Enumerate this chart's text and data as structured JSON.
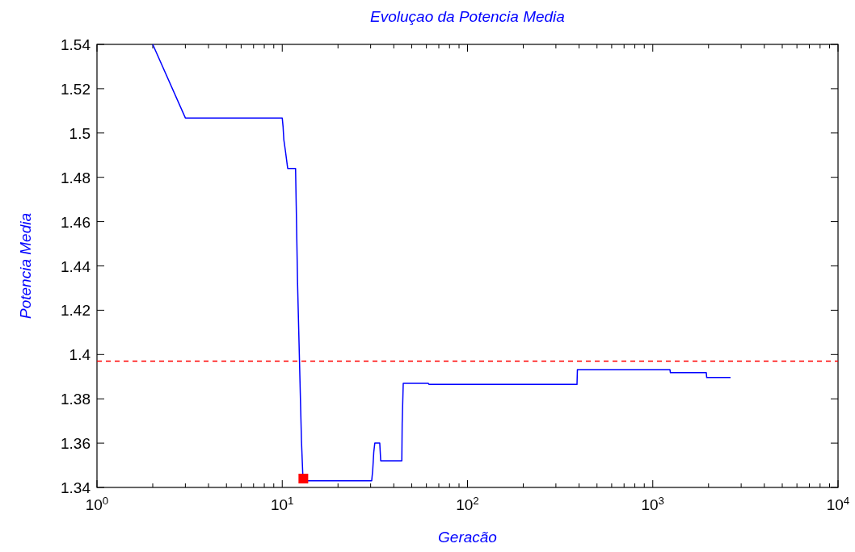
{
  "chart_data": {
    "type": "line",
    "title": "Evoluçao da Potencia Media",
    "xlabel": "Geracão",
    "ylabel": "Potencia Media",
    "log": "x",
    "grid": false,
    "xlim": [
      1,
      10000
    ],
    "xticks": [
      {
        "value": 1,
        "label": "10$^{0}$"
      },
      {
        "value": 10,
        "label": "10$^{1}$"
      },
      {
        "value": 100,
        "label": "10$^{2}$"
      },
      {
        "value": 1000,
        "label": "10$^{3}$"
      },
      {
        "value": 10000,
        "label": "10$^{4}$"
      }
    ],
    "ylim": [
      1.34,
      1.54
    ],
    "yticks": [
      1.34,
      1.36,
      1.38,
      1.4,
      1.42,
      1.44,
      1.46,
      1.48,
      1.5,
      1.52,
      1.54
    ],
    "ref_lines": [
      {
        "axis": "y",
        "value": 1.397,
        "color": "#ff0000",
        "line_style": "dashed"
      }
    ],
    "series": [
      {
        "color": "#0000ff",
        "marker": "none",
        "x": [
          2,
          3,
          10,
          10.1,
          10.2,
          10.4,
          10.7,
          11.8,
          11.9,
          12.1,
          12.4,
          12.7,
          12.95,
          30.4,
          30.8,
          31.2,
          31.6,
          33.6,
          34.0,
          44.2,
          44.4,
          45.0,
          61.4,
          62,
          390,
          392,
          1238,
          1245,
          1945,
          1955,
          2630
        ],
        "values": [
          1.54,
          1.5068,
          1.5068,
          1.503,
          1.497,
          1.492,
          1.484,
          1.484,
          1.467,
          1.432,
          1.396,
          1.361,
          1.343,
          1.343,
          1.348,
          1.356,
          1.36,
          1.36,
          1.352,
          1.352,
          1.369,
          1.387,
          1.387,
          1.3865,
          1.3865,
          1.3932,
          1.3932,
          1.3918,
          1.3918,
          1.3896,
          1.3896
        ]
      },
      {
        "type": "scatter",
        "color": "#ff0000",
        "marker": "square",
        "x": [
          13
        ],
        "values": [
          1.344
        ]
      }
    ]
  }
}
